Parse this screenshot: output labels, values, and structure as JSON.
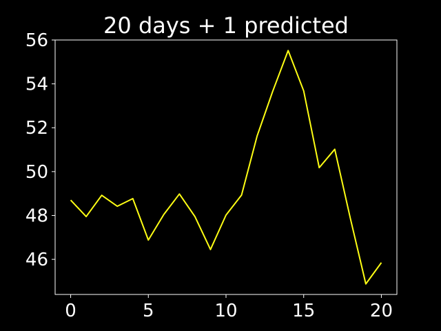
{
  "chart_data": {
    "type": "line",
    "title": "20 days + 1 predicted",
    "xlabel": "",
    "ylabel": "",
    "xlim": [
      -1,
      21
    ],
    "ylim": [
      44.4,
      56.0
    ],
    "grid": false,
    "x_ticks": [
      0,
      5,
      10,
      15,
      20
    ],
    "y_ticks": [
      46,
      48,
      50,
      52,
      54,
      56
    ],
    "series": [
      {
        "x": [
          0,
          1,
          2,
          3,
          4,
          5,
          6,
          7,
          8,
          9,
          10,
          11,
          12,
          13,
          14,
          15,
          16,
          17,
          18,
          19,
          20
        ],
        "y": [
          48.7,
          47.95,
          48.92,
          48.42,
          48.77,
          46.88,
          48.05,
          48.98,
          47.95,
          46.45,
          48.02,
          48.93,
          51.62,
          53.65,
          55.52,
          53.68,
          50.18,
          51.02,
          47.88,
          44.88,
          45.85
        ]
      }
    ],
    "colors": {
      "background": "#000000",
      "axes": "#ffffff",
      "text": "#ffffff",
      "line": "#ffff14"
    }
  }
}
